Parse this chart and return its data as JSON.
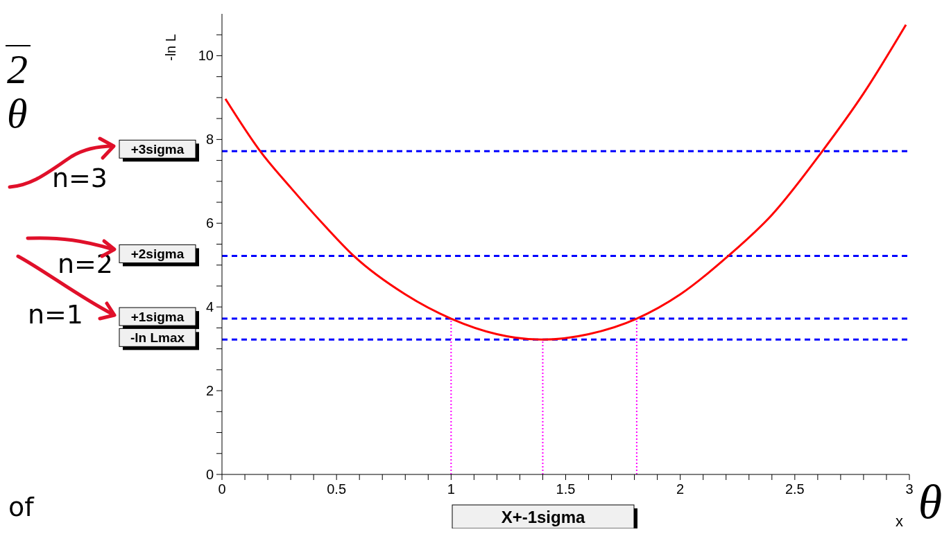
{
  "chart_data": {
    "type": "line",
    "xlabel": "x",
    "ylabel": "-ln L",
    "x": [
      0.015,
      0.167,
      0.3,
      0.45,
      0.575,
      0.8,
      1.0,
      1.2,
      1.4,
      1.6,
      1.81,
      2.0,
      2.21,
      2.4,
      2.62,
      2.8,
      2.985
    ],
    "series": [
      {
        "color": "#ff0000",
        "values": [
          8.97,
          7.72,
          6.85,
          5.93,
          5.22,
          4.3,
          3.72,
          3.35,
          3.22,
          3.35,
          3.72,
          4.3,
          5.22,
          6.2,
          7.72,
          9.1,
          10.74
        ]
      }
    ],
    "xlim": [
      0,
      3
    ],
    "xticks": [
      0,
      {
        "value": 0.1,
        "label": null
      },
      {
        "value": 0.2,
        "label": null
      },
      {
        "value": 0.3,
        "label": null
      },
      {
        "value": 0.4,
        "label": null
      },
      0.5,
      {
        "value": 0.6,
        "label": null
      },
      {
        "value": 0.7,
        "label": null
      },
      {
        "value": 0.8,
        "label": null
      },
      {
        "value": 0.9,
        "label": null
      },
      1,
      {
        "value": 1.1,
        "label": null
      },
      {
        "value": 1.2,
        "label": null
      },
      {
        "value": 1.3,
        "label": null
      },
      {
        "value": 1.4,
        "label": null
      },
      1.5,
      {
        "value": 1.6,
        "label": null
      },
      {
        "value": 1.7,
        "label": null
      },
      {
        "value": 1.8,
        "label": null
      },
      {
        "value": 1.9,
        "label": null
      },
      2,
      {
        "value": 2.1,
        "label": null
      },
      {
        "value": 2.2,
        "label": null
      },
      {
        "value": 2.3,
        "label": null
      },
      {
        "value": 2.4,
        "label": null
      },
      2.5,
      {
        "value": 2.6,
        "label": null
      },
      {
        "value": 2.7,
        "label": null
      },
      {
        "value": 2.8,
        "label": null
      },
      {
        "value": 2.9,
        "label": null
      },
      3
    ],
    "ylim": [
      0,
      11
    ],
    "yticks": [
      0,
      {
        "value": 0.5,
        "label": null
      },
      {
        "value": 1,
        "label": null
      },
      {
        "value": 1.5,
        "label": null
      },
      2,
      {
        "value": 2.5,
        "label": null
      },
      {
        "value": 3,
        "label": null
      },
      {
        "value": 3.5,
        "label": null
      },
      4,
      {
        "value": 4.5,
        "label": null
      },
      {
        "value": 5,
        "label": null
      },
      {
        "value": 5.5,
        "label": null
      },
      6,
      {
        "value": 6.5,
        "label": null
      },
      {
        "value": 7,
        "label": null
      },
      {
        "value": 7.5,
        "label": null
      },
      8,
      {
        "value": 8.5,
        "label": null
      },
      {
        "value": 9,
        "label": null
      },
      {
        "value": 9.5,
        "label": null
      },
      10,
      {
        "value": 10.5,
        "label": null
      }
    ],
    "ref_lines": [
      {
        "axis": "y",
        "value": 7.72,
        "label": "+3sigma",
        "color": "#0000ff",
        "line_style": "dashed"
      },
      {
        "axis": "y",
        "value": 5.22,
        "label": "+2sigma",
        "color": "#0000ff",
        "line_style": "dashed"
      },
      {
        "axis": "y",
        "value": 3.72,
        "label": "+1sigma",
        "color": "#0000ff",
        "line_style": "dashed"
      },
      {
        "axis": "y",
        "value": 3.22,
        "label": "-ln Lmax",
        "color": "#0000ff",
        "line_style": "dashed"
      },
      {
        "axis": "x",
        "value": 1.0,
        "color": "#ff00ff",
        "line_style": "dotted"
      },
      {
        "axis": "x",
        "value": 1.4,
        "color": "#ff00ff",
        "line_style": "dotted"
      },
      {
        "axis": "x",
        "value": 1.81,
        "color": "#ff00ff",
        "line_style": "dotted"
      }
    ],
    "annotations": [
      "X+-1sigma",
      "n=3",
      "n=2",
      "n=1",
      "θ",
      "2",
      "θ",
      "of"
    ],
    "grid": false,
    "legend": false,
    "marker": "none",
    "line_style": "solid"
  }
}
